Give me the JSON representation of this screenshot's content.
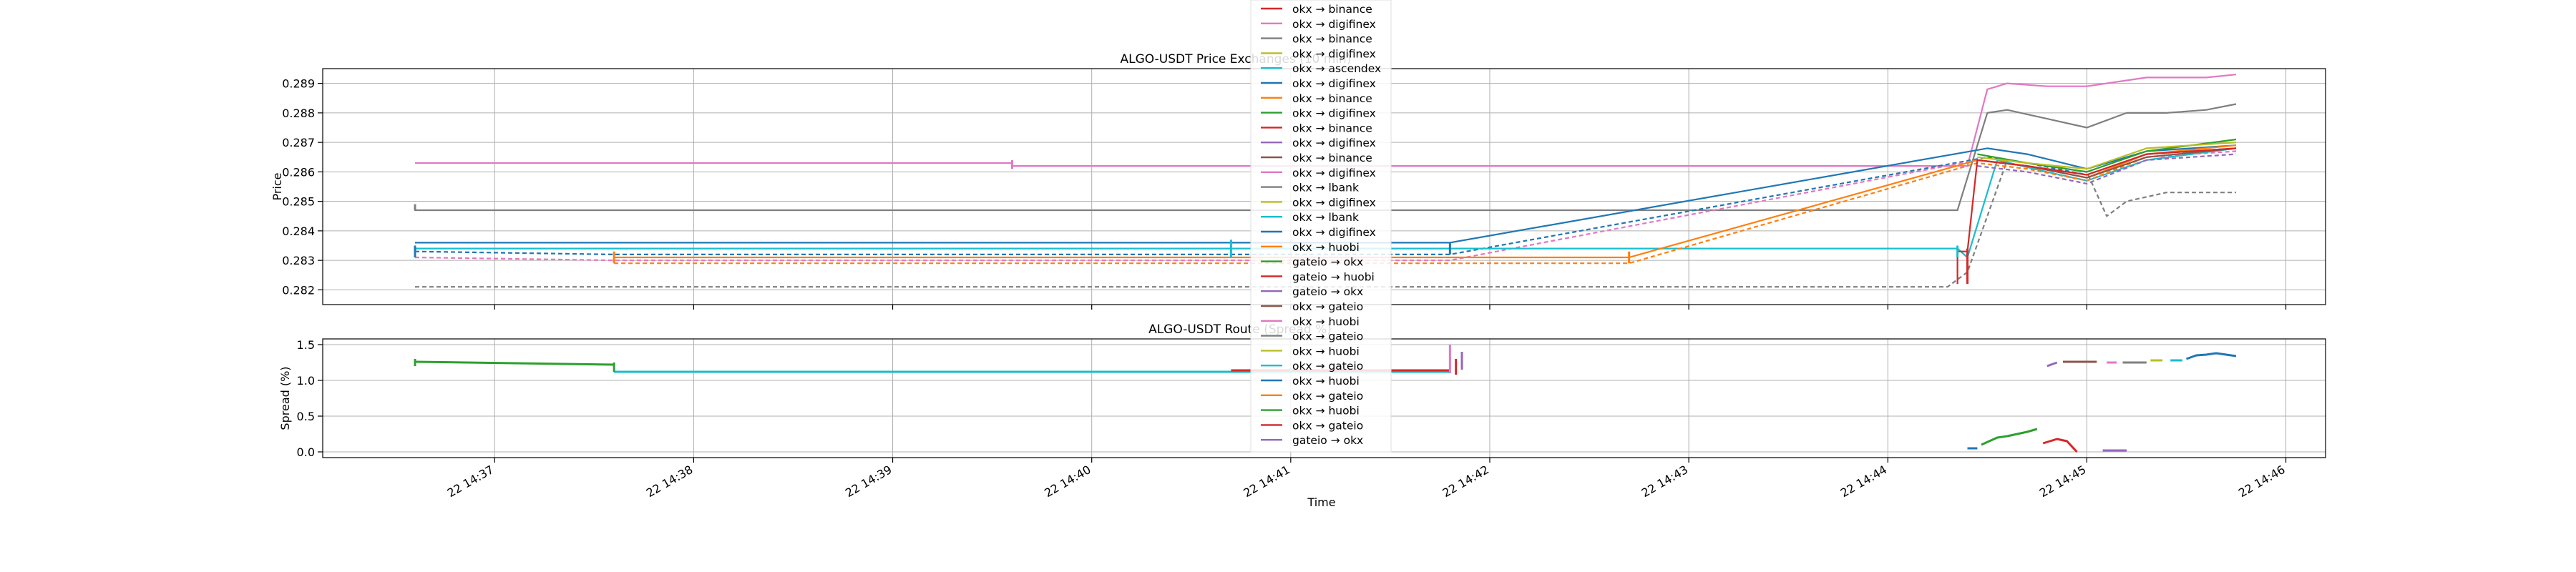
{
  "chart_data": [
    {
      "type": "line",
      "title": "ALGO-USDT Price Exchanges (10 min)",
      "xlabel": "",
      "ylabel": "Price",
      "ylim": [
        0.2815,
        0.2895
      ],
      "yticks": [
        "0.282",
        "0.283",
        "0.284",
        "0.285",
        "0.286",
        "0.287",
        "0.288",
        "0.289"
      ],
      "ytick_values": [
        0.282,
        0.283,
        0.284,
        0.285,
        0.286,
        0.287,
        0.288,
        0.289
      ],
      "grid": true,
      "series": [
        {
          "color": "#e377c2",
          "dash": "",
          "x": [
            36.6,
            39.6,
            39.6,
            44.4,
            44.5,
            44.6,
            44.8,
            45.0,
            45.3,
            45.6,
            45.75
          ],
          "y": [
            0.2863,
            0.2863,
            0.2862,
            0.2862,
            0.2888,
            0.289,
            0.2889,
            0.2889,
            0.2892,
            0.2892,
            0.2893
          ]
        },
        {
          "color": "#7f7f7f",
          "dash": "",
          "x": [
            36.6,
            36.6,
            44.35,
            44.5,
            44.6,
            44.8,
            45.0,
            45.2,
            45.4,
            45.6,
            45.75
          ],
          "y": [
            0.2849,
            0.2847,
            0.2847,
            0.288,
            0.2881,
            0.2878,
            0.2875,
            0.288,
            0.288,
            0.2881,
            0.2883
          ]
        },
        {
          "color": "#7f7f7f",
          "dash": "6,4",
          "x": [
            36.6,
            44.3,
            44.4,
            44.6,
            44.8,
            45.0,
            45.1,
            45.2,
            45.4,
            45.75
          ],
          "y": [
            0.2821,
            0.2821,
            0.2826,
            0.2864,
            0.2862,
            0.286,
            0.2845,
            0.285,
            0.2853,
            0.2853
          ]
        },
        {
          "color": "#1f77b4",
          "dash": "",
          "x": [
            36.6,
            41.8,
            44.5,
            44.7,
            45.0,
            45.3,
            45.75
          ],
          "y": [
            0.2836,
            0.2836,
            0.2868,
            0.2866,
            0.2861,
            0.2867,
            0.2869
          ]
        },
        {
          "color": "#1f77b4",
          "dash": "6,4",
          "x": [
            36.6,
            37.6,
            41.8,
            44.5,
            44.7,
            45.0,
            45.3,
            45.75
          ],
          "y": [
            0.2833,
            0.2832,
            0.2832,
            0.2865,
            0.2863,
            0.2859,
            0.2866,
            0.2868
          ]
        },
        {
          "color": "#e377c2",
          "dash": "6,4",
          "x": [
            36.6,
            37.6,
            41.8,
            44.45,
            44.7,
            45.0,
            45.3,
            45.75
          ],
          "y": [
            0.2831,
            0.283,
            0.283,
            0.2864,
            0.2862,
            0.2858,
            0.2865,
            0.2867
          ]
        },
        {
          "color": "#17becf",
          "dash": "",
          "x": [
            36.6,
            41.8,
            44.35,
            44.4,
            44.55,
            44.8,
            45.0,
            45.3,
            45.75
          ],
          "y": [
            0.2834,
            0.2834,
            0.2834,
            0.2831,
            0.2864,
            0.286,
            0.2857,
            0.2864,
            0.2868
          ]
        },
        {
          "color": "#ff7f0e",
          "dash": "",
          "x": [
            37.6,
            42.7,
            44.45,
            44.7,
            45.0,
            45.3,
            45.75
          ],
          "y": [
            0.2831,
            0.2831,
            0.2864,
            0.2862,
            0.2858,
            0.2866,
            0.2869
          ]
        },
        {
          "color": "#ff7f0e",
          "dash": "6,4",
          "x": [
            37.6,
            42.7,
            44.45,
            44.7,
            45.0,
            45.3,
            45.75
          ],
          "y": [
            0.2829,
            0.2829,
            0.2863,
            0.2861,
            0.2857,
            0.2865,
            0.2868
          ]
        },
        {
          "color": "#2ca02c",
          "dash": "",
          "x": [
            44.45,
            44.7,
            45.0,
            45.3,
            45.75
          ],
          "y": [
            0.2866,
            0.2863,
            0.286,
            0.2867,
            0.2871
          ]
        },
        {
          "color": "#bcbd22",
          "dash": "",
          "x": [
            44.45,
            44.7,
            45.0,
            45.3,
            45.75
          ],
          "y": [
            0.2865,
            0.2863,
            0.2861,
            0.2868,
            0.287
          ]
        },
        {
          "color": "#8c564b",
          "dash": "",
          "x": [
            44.45,
            44.7,
            45.0,
            45.3,
            45.75
          ],
          "y": [
            0.2864,
            0.2862,
            0.2858,
            0.2865,
            0.2868
          ]
        },
        {
          "color": "#9467bd",
          "dash": "6,4",
          "x": [
            44.45,
            44.7,
            45.0,
            45.3,
            45.75
          ],
          "y": [
            0.2862,
            0.286,
            0.2856,
            0.2864,
            0.2866
          ]
        },
        {
          "color": "#d62728",
          "dash": "",
          "x": [
            44.35,
            44.35,
            44.4,
            44.45,
            44.7,
            45.0,
            45.3,
            45.75
          ],
          "y": [
            0.2822,
            0.2833,
            0.2833,
            0.2864,
            0.2862,
            0.2859,
            0.2866,
            0.2868
          ]
        }
      ],
      "bumps": [
        {
          "color": "#d62728",
          "x": 44.4,
          "y1": 0.2822,
          "y2": 0.2834
        },
        {
          "color": "#17becf",
          "x": 44.35,
          "y1": 0.2831,
          "y2": 0.2835
        },
        {
          "color": "#17becf",
          "x": 40.7,
          "y1": 0.2831,
          "y2": 0.2837
        },
        {
          "color": "#1f77b4",
          "x": 36.6,
          "y1": 0.2831,
          "y2": 0.2835
        },
        {
          "color": "#ff7f0e",
          "x": 37.6,
          "y1": 0.2829,
          "y2": 0.2833
        },
        {
          "color": "#ff7f0e",
          "x": 42.7,
          "y1": 0.2829,
          "y2": 0.2833
        },
        {
          "color": "#1f77b4",
          "x": 41.8,
          "y1": 0.2832,
          "y2": 0.2836
        },
        {
          "color": "#e377c2",
          "x": 39.6,
          "y1": 0.2861,
          "y2": 0.2864
        },
        {
          "color": "#7f7f7f",
          "x": 36.6,
          "y1": 0.2847,
          "y2": 0.2849
        }
      ]
    },
    {
      "type": "line",
      "title": "ALGO-USDT Route (Spread %)",
      "xlabel": "Time",
      "ylabel": "Spread (%)",
      "ylim": [
        -0.08,
        1.58
      ],
      "yticks": [
        "0.0",
        "0.5",
        "1.0",
        "1.5"
      ],
      "ytick_values": [
        0,
        0.5,
        1.0,
        1.5
      ],
      "grid": true,
      "xticks": [
        "22 14:37",
        "22 14:38",
        "22 14:39",
        "22 14:40",
        "22 14:41",
        "22 14:42",
        "22 14:43",
        "22 14:44",
        "22 14:45",
        "22 14:46"
      ],
      "xtick_values": [
        37,
        38,
        39,
        40,
        41,
        42,
        43,
        44,
        45,
        46
      ],
      "series": [
        {
          "color": "#2ca02c",
          "dash": "",
          "x": [
            36.6,
            37.6
          ],
          "y": [
            1.26,
            1.22
          ]
        },
        {
          "color": "#17becf",
          "dash": "",
          "x": [
            37.6,
            41.8
          ],
          "y": [
            1.12,
            1.12
          ]
        },
        {
          "color": "#d62728",
          "dash": "",
          "x": [
            40.7,
            41.8
          ],
          "y": [
            1.14,
            1.14
          ]
        },
        {
          "color": "#9467bd",
          "dash": "",
          "x": [
            44.8,
            44.85
          ],
          "y": [
            1.2,
            1.25
          ]
        },
        {
          "color": "#8c564b",
          "dash": "",
          "x": [
            44.88,
            45.05
          ],
          "y": [
            1.26,
            1.26
          ]
        },
        {
          "color": "#e377c2",
          "dash": "",
          "x": [
            45.1,
            45.15
          ],
          "y": [
            1.25,
            1.25
          ]
        },
        {
          "color": "#7f7f7f",
          "dash": "",
          "x": [
            45.18,
            45.3
          ],
          "y": [
            1.25,
            1.25
          ]
        },
        {
          "color": "#bcbd22",
          "dash": "",
          "x": [
            45.32,
            45.38
          ],
          "y": [
            1.28,
            1.28
          ]
        },
        {
          "color": "#17becf",
          "dash": "",
          "x": [
            45.42,
            45.48
          ],
          "y": [
            1.28,
            1.28
          ]
        },
        {
          "color": "#1f77b4",
          "dash": "",
          "x": [
            45.5,
            45.55,
            45.6,
            45.65,
            45.75
          ],
          "y": [
            1.3,
            1.35,
            1.36,
            1.38,
            1.34
          ]
        },
        {
          "color": "#1f77b4",
          "dash": "",
          "x": [
            44.4,
            44.45
          ],
          "y": [
            0.05,
            0.05
          ]
        },
        {
          "color": "#2ca02c",
          "dash": "",
          "x": [
            44.47,
            44.55,
            44.6,
            44.7,
            44.75
          ],
          "y": [
            0.1,
            0.2,
            0.22,
            0.28,
            0.32
          ]
        },
        {
          "color": "#d62728",
          "dash": "",
          "x": [
            44.78,
            44.85,
            44.9,
            44.95
          ],
          "y": [
            0.12,
            0.18,
            0.15,
            0.0
          ]
        },
        {
          "color": "#9467bd",
          "dash": "",
          "x": [
            45.08,
            45.2
          ],
          "y": [
            0.02,
            0.02
          ]
        }
      ],
      "bumps": [
        {
          "color": "#2ca02c",
          "x": 36.6,
          "y1": 1.2,
          "y2": 1.3
        },
        {
          "color": "#2ca02c",
          "x": 37.6,
          "y1": 1.12,
          "y2": 1.25
        },
        {
          "color": "#17becf",
          "x": 41.0,
          "y1": 1.1,
          "y2": 1.17
        },
        {
          "color": "#e377c2",
          "x": 41.8,
          "y1": 1.1,
          "y2": 1.5
        },
        {
          "color": "#d62728",
          "x": 41.83,
          "y1": 1.08,
          "y2": 1.3
        },
        {
          "color": "#9467bd",
          "x": 41.86,
          "y1": 1.15,
          "y2": 1.4
        }
      ]
    }
  ],
  "legend": {
    "placement": "upper-center",
    "entries": [
      {
        "label": "okx → binance",
        "color": "#d62728"
      },
      {
        "label": "okx → digifinex",
        "color": "#e377c2"
      },
      {
        "label": "okx → binance",
        "color": "#7f7f7f"
      },
      {
        "label": "okx → digifinex",
        "color": "#bcbd22"
      },
      {
        "label": "okx → ascendex",
        "color": "#17becf"
      },
      {
        "label": "okx → digifinex",
        "color": "#1f77b4"
      },
      {
        "label": "okx → binance",
        "color": "#ff7f0e"
      },
      {
        "label": "okx → digifinex",
        "color": "#2ca02c"
      },
      {
        "label": "okx → binance",
        "color": "#d62728"
      },
      {
        "label": "okx → digifinex",
        "color": "#9467bd"
      },
      {
        "label": "okx → binance",
        "color": "#8c564b"
      },
      {
        "label": "okx → digifinex",
        "color": "#e377c2"
      },
      {
        "label": "okx → lbank",
        "color": "#7f7f7f"
      },
      {
        "label": "okx → digifinex",
        "color": "#bcbd22"
      },
      {
        "label": "okx → lbank",
        "color": "#17becf"
      },
      {
        "label": "okx → digifinex",
        "color": "#1f77b4"
      },
      {
        "label": "okx → huobi",
        "color": "#ff7f0e"
      },
      {
        "label": "gateio → okx",
        "color": "#2ca02c"
      },
      {
        "label": "gateio → huobi",
        "color": "#d62728"
      },
      {
        "label": "gateio → okx",
        "color": "#9467bd"
      },
      {
        "label": "okx → gateio",
        "color": "#8c564b"
      },
      {
        "label": "okx → huobi",
        "color": "#e377c2"
      },
      {
        "label": "okx → gateio",
        "color": "#7f7f7f"
      },
      {
        "label": "okx → huobi",
        "color": "#bcbd22"
      },
      {
        "label": "okx → gateio",
        "color": "#17becf"
      },
      {
        "label": "okx → huobi",
        "color": "#1f77b4"
      },
      {
        "label": "okx → gateio",
        "color": "#ff7f0e"
      },
      {
        "label": "okx → huobi",
        "color": "#2ca02c"
      },
      {
        "label": "okx → gateio",
        "color": "#d62728"
      },
      {
        "label": "gateio → okx",
        "color": "#9467bd"
      }
    ]
  }
}
